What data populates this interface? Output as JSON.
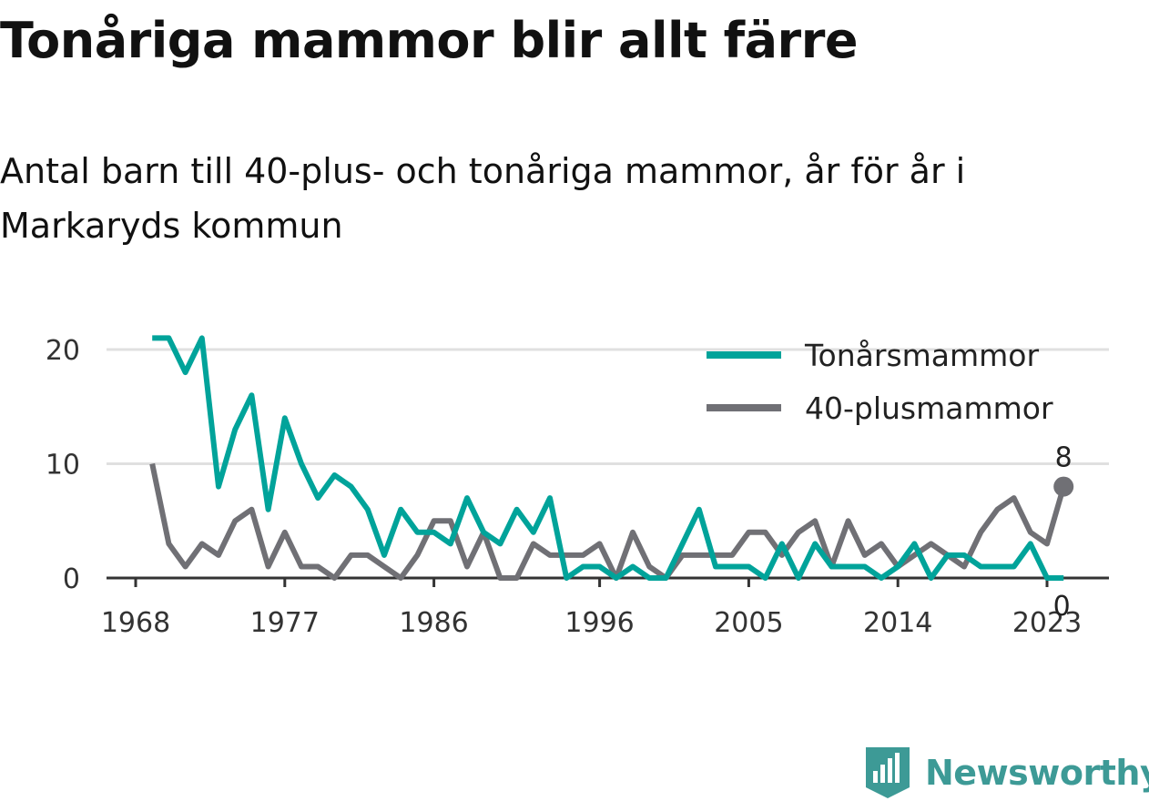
{
  "header": {
    "title": "Tonåriga mammor blir allt färre",
    "subtitle": "Antal barn till 40-plus- och tonåriga mammor, år för år i Markaryds kommun"
  },
  "brand": {
    "name": "Newsworthy",
    "color": "#3d9a96"
  },
  "chart_data": {
    "type": "line",
    "xlim": [
      1968,
      2024
    ],
    "ylim": [
      0,
      21
    ],
    "yticks": [
      0,
      10,
      20
    ],
    "xticks": [
      1968,
      1977,
      1986,
      1996,
      2005,
      2014,
      2023
    ],
    "grid": true,
    "legend_position": "top-right",
    "x": [
      1969,
      1970,
      1971,
      1972,
      1973,
      1974,
      1975,
      1976,
      1977,
      1978,
      1979,
      1980,
      1981,
      1982,
      1983,
      1984,
      1985,
      1986,
      1987,
      1988,
      1989,
      1990,
      1991,
      1992,
      1993,
      1994,
      1995,
      1996,
      1997,
      1998,
      1999,
      2000,
      2001,
      2002,
      2003,
      2004,
      2005,
      2006,
      2007,
      2008,
      2009,
      2010,
      2011,
      2012,
      2013,
      2014,
      2015,
      2016,
      2017,
      2018,
      2019,
      2020,
      2021,
      2022,
      2023,
      2024
    ],
    "series": [
      {
        "name": "Tonårsmammor",
        "color": "#00a39a",
        "values": [
          21,
          21,
          18,
          21,
          8,
          13,
          16,
          6,
          14,
          10,
          7,
          9,
          8,
          6,
          2,
          6,
          4,
          4,
          3,
          7,
          4,
          3,
          6,
          4,
          7,
          0,
          1,
          1,
          0,
          1,
          0,
          0,
          3,
          6,
          1,
          1,
          1,
          0,
          3,
          0,
          3,
          1,
          1,
          1,
          0,
          1,
          3,
          0,
          2,
          2,
          1,
          1,
          1,
          3,
          0,
          0
        ],
        "end_label": "0"
      },
      {
        "name": "40-plusmammor",
        "color": "#707075",
        "values": [
          10,
          3,
          1,
          3,
          2,
          5,
          6,
          1,
          4,
          1,
          1,
          0,
          2,
          2,
          1,
          0,
          2,
          5,
          5,
          1,
          4,
          0,
          0,
          3,
          2,
          2,
          2,
          3,
          0,
          4,
          1,
          0,
          2,
          2,
          2,
          2,
          4,
          4,
          2,
          4,
          5,
          1,
          5,
          2,
          3,
          1,
          2,
          3,
          2,
          1,
          4,
          6,
          7,
          4,
          3,
          8
        ],
        "end_label": "8"
      }
    ]
  }
}
